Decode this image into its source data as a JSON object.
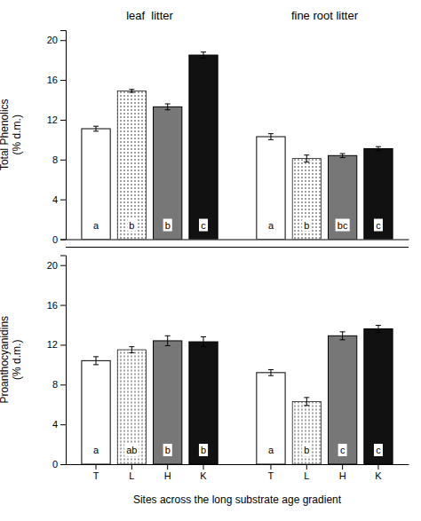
{
  "chart_data": [
    {
      "type": "bar",
      "y_label": "Total Phenolics\n(% d.m.)",
      "ylim": [
        0,
        21
      ],
      "yticks": [
        0,
        4,
        8,
        12,
        16,
        20
      ],
      "tick_labels": "y",
      "groups": [
        {
          "title": "leaf  litter",
          "categories": [
            null,
            null,
            null,
            null
          ],
          "values": [
            11.1,
            14.9,
            13.3,
            18.5
          ],
          "errors": [
            0.25,
            0.15,
            0.3,
            0.3
          ],
          "letters": [
            "a",
            "b",
            "b",
            "c"
          ],
          "colors": [
            "white",
            "dotted",
            "gray",
            "black"
          ]
        },
        {
          "title": "fine root litter",
          "categories": [
            null,
            null,
            null,
            null
          ],
          "values": [
            10.3,
            8.1,
            8.4,
            9.1
          ],
          "errors": [
            0.3,
            0.35,
            0.2,
            0.2
          ],
          "letters": [
            "a",
            "b",
            "bc",
            "c"
          ],
          "colors": [
            "white",
            "dotted",
            "gray",
            "black"
          ]
        }
      ]
    },
    {
      "type": "bar",
      "x_label": "Sites across the long substrate age gradient",
      "y_label": "Proanthocyanidins\n(% d.m.)",
      "ylim": [
        0,
        21
      ],
      "yticks": [
        0,
        4,
        8,
        12,
        16,
        20
      ],
      "groups": [
        {
          "categories": [
            "T",
            "L",
            "H",
            "K"
          ],
          "values": [
            10.4,
            11.5,
            12.4,
            12.3
          ],
          "errors": [
            0.4,
            0.3,
            0.5,
            0.5
          ],
          "letters": [
            "a",
            "ab",
            "b",
            "b"
          ],
          "colors": [
            "white",
            "dotted",
            "gray",
            "black"
          ]
        },
        {
          "categories": [
            "T",
            "L",
            "H",
            "K"
          ],
          "values": [
            9.2,
            6.3,
            12.9,
            13.6
          ],
          "errors": [
            0.3,
            0.4,
            0.4,
            0.35
          ],
          "letters": [
            "a",
            "b",
            "c",
            "c"
          ],
          "colors": [
            "white",
            "dotted",
            "gray",
            "black"
          ]
        }
      ]
    }
  ]
}
